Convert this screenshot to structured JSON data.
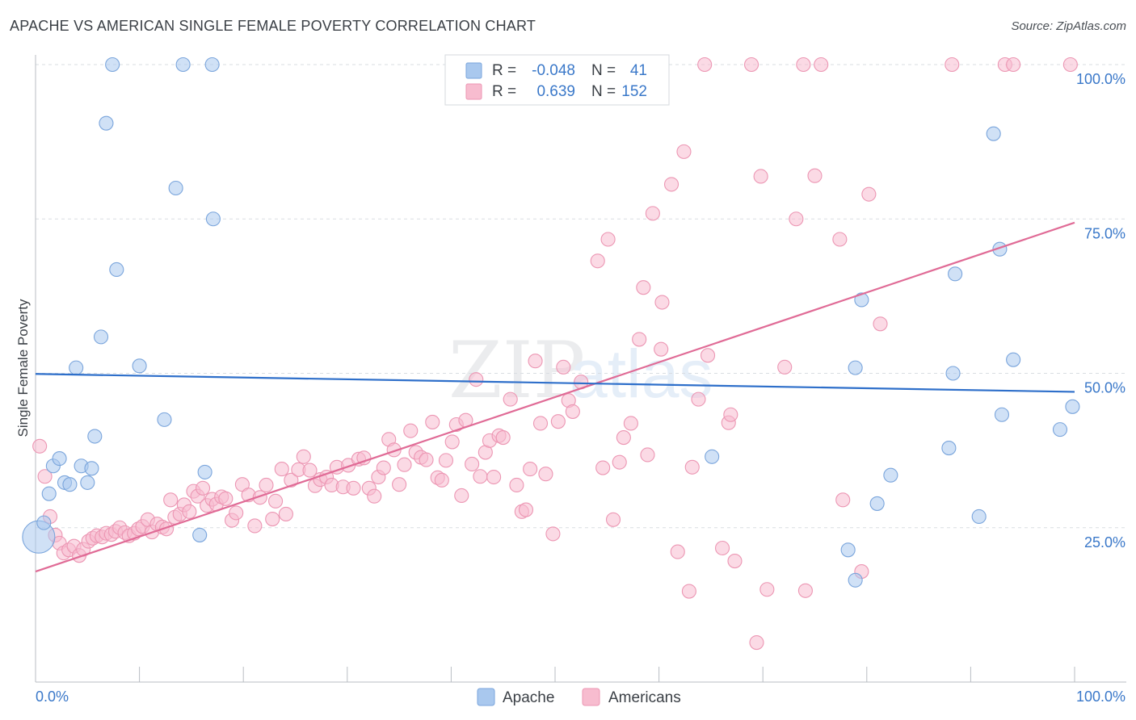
{
  "header": {
    "title": "APACHE VS AMERICAN SINGLE FEMALE POVERTY CORRELATION CHART",
    "source": "Source: ZipAtlas.com"
  },
  "watermark": {
    "text_zip": "ZIP",
    "text_atlas": "atlas"
  },
  "stats_legend": {
    "rows": [
      {
        "r_label": "R =",
        "r_value": "-0.048",
        "n_label": "N =",
        "n_value": "41"
      },
      {
        "r_label": "R =",
        "r_value": "0.639",
        "n_label": "N =",
        "n_value": "152"
      }
    ]
  },
  "bottom_legend": {
    "items": [
      "Apache",
      "Americans"
    ]
  },
  "colors": {
    "apache_fill": "#a9c8ee",
    "apache_stroke": "#7aa5dc",
    "apache_line": "#2e6fca",
    "americans_fill": "#f7bccf",
    "americans_stroke": "#ec96b3",
    "americans_line": "#e06b96",
    "tick_text": "#3a78c9",
    "grid": "#d9dde2"
  },
  "chart_data": {
    "type": "scatter",
    "title": "APACHE VS AMERICAN SINGLE FEMALE POVERTY CORRELATION CHART",
    "xlabel": "",
    "ylabel": "Single Female Poverty",
    "xlim": [
      0,
      100
    ],
    "ylim": [
      0,
      100
    ],
    "x_tick_labels": [
      "0.0%",
      "100.0%"
    ],
    "y_tick_labels": [
      "25.0%",
      "50.0%",
      "75.0%",
      "100.0%"
    ],
    "y_ticks": [
      25,
      50,
      75,
      100
    ],
    "grid": true,
    "series": [
      {
        "name": "Apache",
        "r": -0.048,
        "n": 41,
        "trend": {
          "x": [
            0,
            100
          ],
          "y": [
            49.9,
            47.0
          ]
        },
        "points": [
          [
            0.3,
            23.5,
            "big"
          ],
          [
            0.8,
            25.8
          ],
          [
            1.3,
            30.5
          ],
          [
            1.7,
            35.0
          ],
          [
            2.3,
            36.2
          ],
          [
            2.8,
            32.3
          ],
          [
            3.3,
            32.0
          ],
          [
            3.9,
            50.9
          ],
          [
            4.4,
            35.0
          ],
          [
            5.0,
            32.3
          ],
          [
            5.4,
            34.6
          ],
          [
            5.7,
            39.8
          ],
          [
            6.3,
            55.9
          ],
          [
            6.8,
            90.5
          ],
          [
            7.4,
            100
          ],
          [
            7.8,
            66.8
          ],
          [
            10.0,
            51.2
          ],
          [
            12.4,
            42.5
          ],
          [
            13.5,
            80.0
          ],
          [
            14.2,
            100
          ],
          [
            15.8,
            23.8
          ],
          [
            16.3,
            34.0
          ],
          [
            17.0,
            100
          ],
          [
            17.1,
            75.0
          ],
          [
            65.1,
            36.5
          ],
          [
            78.2,
            21.4
          ],
          [
            78.9,
            16.5
          ],
          [
            78.9,
            50.9
          ],
          [
            79.5,
            61.9
          ],
          [
            81.0,
            28.9
          ],
          [
            82.3,
            33.5
          ],
          [
            87.9,
            37.9
          ],
          [
            88.3,
            50.0
          ],
          [
            88.5,
            66.1
          ],
          [
            90.8,
            26.8
          ],
          [
            92.2,
            88.8
          ],
          [
            92.8,
            70.1
          ],
          [
            93.0,
            43.3
          ],
          [
            94.1,
            52.2
          ],
          [
            98.6,
            40.9
          ],
          [
            99.8,
            44.6
          ]
        ]
      },
      {
        "name": "Americans",
        "r": 0.639,
        "n": 152,
        "trend": {
          "x": [
            0,
            100
          ],
          "y": [
            17.9,
            74.4
          ]
        },
        "points": [
          [
            0.4,
            38.2
          ],
          [
            0.9,
            33.3
          ],
          [
            1.4,
            26.8
          ],
          [
            1.9,
            23.8
          ],
          [
            2.3,
            22.5
          ],
          [
            2.7,
            20.9
          ],
          [
            3.2,
            21.4
          ],
          [
            3.7,
            22.0
          ],
          [
            4.2,
            20.5
          ],
          [
            4.6,
            21.5
          ],
          [
            5.1,
            22.8
          ],
          [
            5.5,
            23.3
          ],
          [
            5.9,
            23.7
          ],
          [
            6.4,
            23.5
          ],
          [
            6.8,
            24.1
          ],
          [
            7.3,
            23.9
          ],
          [
            7.7,
            24.4
          ],
          [
            8.1,
            25.0
          ],
          [
            8.6,
            24.2
          ],
          [
            9.0,
            23.7
          ],
          [
            9.5,
            24.1
          ],
          [
            9.9,
            24.8
          ],
          [
            10.3,
            25.2
          ],
          [
            10.8,
            26.3
          ],
          [
            11.2,
            24.3
          ],
          [
            11.7,
            25.6
          ],
          [
            12.2,
            25.1
          ],
          [
            12.6,
            24.8
          ],
          [
            13.0,
            29.5
          ],
          [
            13.4,
            26.7
          ],
          [
            13.9,
            27.2
          ],
          [
            14.3,
            28.7
          ],
          [
            14.8,
            27.6
          ],
          [
            15.2,
            30.9
          ],
          [
            15.6,
            30.1
          ],
          [
            16.1,
            31.4
          ],
          [
            16.5,
            28.6
          ],
          [
            17.0,
            29.6
          ],
          [
            17.4,
            28.8
          ],
          [
            17.9,
            30.0
          ],
          [
            18.3,
            29.7
          ],
          [
            18.9,
            26.2
          ],
          [
            19.3,
            27.4
          ],
          [
            19.9,
            32.0
          ],
          [
            20.5,
            30.3
          ],
          [
            21.1,
            25.3
          ],
          [
            21.6,
            29.9
          ],
          [
            22.2,
            31.9
          ],
          [
            22.8,
            26.4
          ],
          [
            23.1,
            29.3
          ],
          [
            23.7,
            34.5
          ],
          [
            24.1,
            27.2
          ],
          [
            24.6,
            32.7
          ],
          [
            25.3,
            34.4
          ],
          [
            25.8,
            36.5
          ],
          [
            26.4,
            34.3
          ],
          [
            26.9,
            31.8
          ],
          [
            27.4,
            32.8
          ],
          [
            28.0,
            33.2
          ],
          [
            28.5,
            31.9
          ],
          [
            29.0,
            34.8
          ],
          [
            29.6,
            31.6
          ],
          [
            30.1,
            35.1
          ],
          [
            30.6,
            31.4
          ],
          [
            31.1,
            36.1
          ],
          [
            31.6,
            36.3
          ],
          [
            32.1,
            31.4
          ],
          [
            32.6,
            30.1
          ],
          [
            33.0,
            33.2
          ],
          [
            33.5,
            34.7
          ],
          [
            34.0,
            39.3
          ],
          [
            34.5,
            37.6
          ],
          [
            35.0,
            32.0
          ],
          [
            35.5,
            35.2
          ],
          [
            36.1,
            40.7
          ],
          [
            36.6,
            37.2
          ],
          [
            37.1,
            36.4
          ],
          [
            37.6,
            36.0
          ],
          [
            38.2,
            42.1
          ],
          [
            38.7,
            33.1
          ],
          [
            39.1,
            32.7
          ],
          [
            39.5,
            35.9
          ],
          [
            40.1,
            38.9
          ],
          [
            40.5,
            41.7
          ],
          [
            41.0,
            30.2
          ],
          [
            41.4,
            42.4
          ],
          [
            42.0,
            35.3
          ],
          [
            42.4,
            49.0
          ],
          [
            42.8,
            33.3
          ],
          [
            43.3,
            37.2
          ],
          [
            43.7,
            39.1
          ],
          [
            44.1,
            33.2
          ],
          [
            44.6,
            39.9
          ],
          [
            45.0,
            39.6
          ],
          [
            45.7,
            45.8
          ],
          [
            46.3,
            31.9
          ],
          [
            46.8,
            27.6
          ],
          [
            47.2,
            27.9
          ],
          [
            47.6,
            34.5
          ],
          [
            48.1,
            52.0
          ],
          [
            48.6,
            41.9
          ],
          [
            49.1,
            33.7
          ],
          [
            49.8,
            24.0
          ],
          [
            50.3,
            42.2
          ],
          [
            50.8,
            51.0
          ],
          [
            51.3,
            45.6
          ],
          [
            51.7,
            43.8
          ],
          [
            52.5,
            48.6
          ],
          [
            53.3,
            100
          ],
          [
            54.1,
            68.2
          ],
          [
            54.6,
            34.7
          ],
          [
            55.1,
            71.7
          ],
          [
            55.6,
            26.3
          ],
          [
            56.2,
            35.6
          ],
          [
            56.6,
            39.6
          ],
          [
            57.3,
            41.9
          ],
          [
            58.1,
            55.5
          ],
          [
            58.5,
            63.9
          ],
          [
            58.9,
            36.8
          ],
          [
            59.4,
            75.9
          ],
          [
            60.2,
            53.9
          ],
          [
            60.3,
            61.5
          ],
          [
            61.2,
            80.6
          ],
          [
            61.8,
            21.1
          ],
          [
            62.4,
            85.9
          ],
          [
            62.9,
            14.7
          ],
          [
            63.2,
            34.8
          ],
          [
            63.8,
            45.8
          ],
          [
            64.4,
            100
          ],
          [
            64.7,
            52.9
          ],
          [
            66.1,
            21.7
          ],
          [
            66.7,
            42.0
          ],
          [
            66.9,
            43.3
          ],
          [
            67.3,
            19.6
          ],
          [
            68.9,
            100
          ],
          [
            69.4,
            6.4
          ],
          [
            69.8,
            81.9
          ],
          [
            70.4,
            15.0
          ],
          [
            72.1,
            51.0
          ],
          [
            73.2,
            75.0
          ],
          [
            73.9,
            100
          ],
          [
            74.1,
            14.8
          ],
          [
            75.0,
            82.0
          ],
          [
            75.6,
            100
          ],
          [
            77.4,
            71.7
          ],
          [
            77.7,
            29.5
          ],
          [
            79.5,
            17.9
          ],
          [
            80.2,
            79.0
          ],
          [
            81.3,
            58.0
          ],
          [
            88.2,
            100
          ],
          [
            93.3,
            100
          ],
          [
            94.1,
            100
          ],
          [
            99.6,
            100
          ]
        ]
      }
    ]
  }
}
